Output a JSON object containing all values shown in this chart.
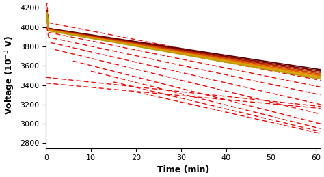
{
  "xlim": [
    0,
    61
  ],
  "ylim": [
    2750,
    4250
  ],
  "xlabel": "Time (min)",
  "ylabel": "Voltage (10$^{-3}$ V)",
  "xticks": [
    0,
    10,
    20,
    30,
    40,
    50,
    60
  ],
  "yticks": [
    2800,
    3000,
    3200,
    3400,
    3600,
    3800,
    4000,
    4200
  ],
  "t_max": 61,
  "solid_colors": [
    "#5C0000",
    "#800000",
    "#AA2200",
    "#CC4400",
    "#DD6600",
    "#EE8800",
    "#CCAA00",
    "#BB9900"
  ],
  "solid_v_starts": [
    3990,
    3985,
    3982,
    3978,
    3975,
    3972,
    3969,
    3966
  ],
  "solid_v_ends": [
    3560,
    3545,
    3530,
    3515,
    3500,
    3488,
    3476,
    3464
  ],
  "solid_spike": [
    185,
    183,
    181,
    179,
    177,
    175,
    173,
    171
  ],
  "dashed_v_starts": [
    4050,
    3990,
    3950,
    3900,
    3850,
    3790,
    3720,
    3660,
    3600,
    3540,
    3480,
    3420
  ],
  "dashed_v_ends": [
    3500,
    3450,
    3380,
    3300,
    3200,
    3100,
    3000,
    2950,
    2920,
    2900,
    3180,
    3160
  ],
  "dashed_t_starts": [
    0,
    0,
    0,
    0,
    1,
    2,
    6,
    10,
    15,
    20,
    0,
    0
  ],
  "dashed_spike": [
    200,
    180,
    150,
    120,
    80,
    40,
    0,
    0,
    0,
    0,
    0,
    0
  ]
}
